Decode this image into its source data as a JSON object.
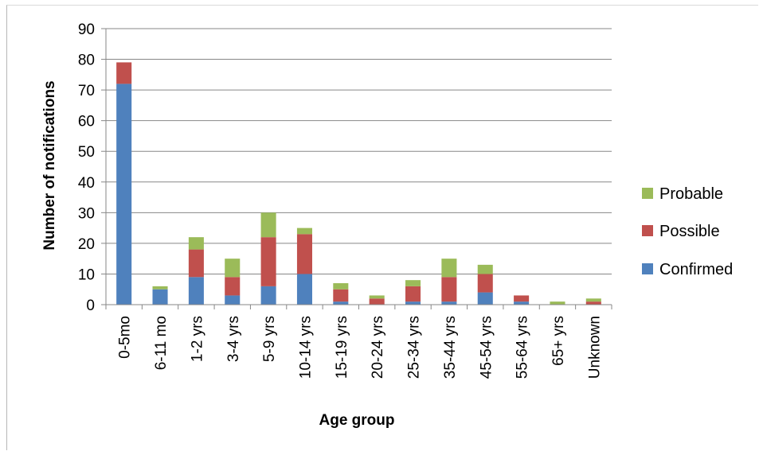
{
  "chart_data": {
    "type": "bar",
    "stacked": true,
    "title": "",
    "xlabel": "Age group",
    "ylabel": "Number of notifications",
    "ylim": [
      0,
      90
    ],
    "yticks": [
      0,
      10,
      20,
      30,
      40,
      50,
      60,
      70,
      80,
      90
    ],
    "grid": true,
    "legend_position": "right",
    "categories": [
      "0-5mo",
      "6-11 mo",
      "1-2 yrs",
      "3-4 yrs",
      "5-9 yrs",
      "10-14 yrs",
      "15-19 yrs",
      "20-24 yrs",
      "25-34 yrs",
      "35-44 yrs",
      "45-54 yrs",
      "55-64 yrs",
      "65+ yrs",
      "Unknown"
    ],
    "series": [
      {
        "name": "Confirmed",
        "color": "#4f81bd",
        "values": [
          72,
          5,
          9,
          3,
          6,
          10,
          1,
          0,
          1,
          1,
          4,
          1,
          0,
          0
        ]
      },
      {
        "name": "Possible",
        "color": "#c0504d",
        "values": [
          7,
          0,
          9,
          6,
          16,
          13,
          4,
          2,
          5,
          8,
          6,
          2,
          0,
          1
        ]
      },
      {
        "name": "Probable",
        "color": "#9bbb59",
        "values": [
          0,
          1,
          4,
          6,
          8,
          2,
          2,
          1,
          2,
          6,
          3,
          0,
          1,
          1
        ]
      }
    ]
  }
}
